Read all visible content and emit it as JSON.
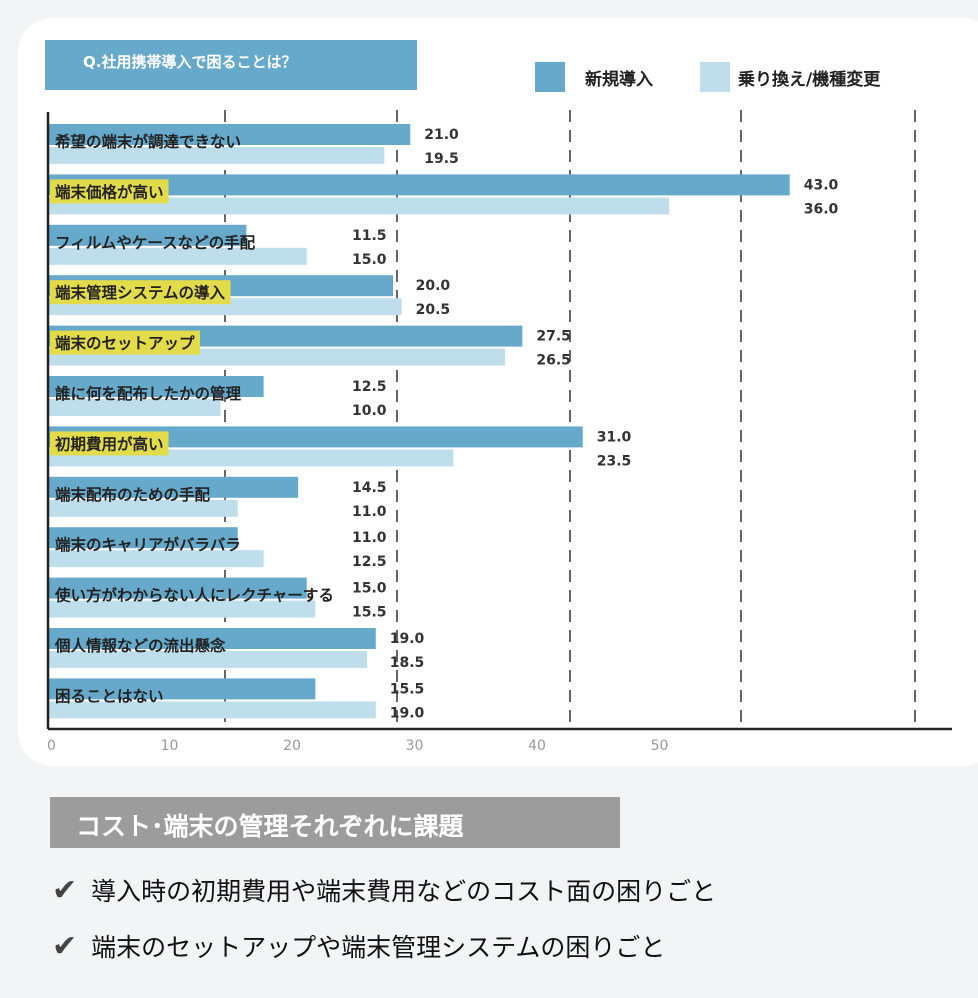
{
  "chart_data": {
    "type": "bar",
    "orientation": "horizontal",
    "title": "Q.社用携帯導入で困ることは？",
    "categories": [
      "希望の端末が調達できない",
      "端末価格が高い",
      "フィルムやケースなどの手配",
      "端末管理システムの導入",
      "端末のセットアップ",
      "誰に何を配布したかの管理",
      "初期費用が高い",
      "端末配布のための手配",
      "端末のキャリアがバラバラ",
      "使い方がわからない人にレクチャーする",
      "個人情報などの流出懸念",
      "困ることはない"
    ],
    "highlighted": [
      false,
      true,
      false,
      true,
      true,
      false,
      true,
      false,
      false,
      false,
      false,
      false
    ],
    "series": [
      {
        "name": "新規導入",
        "color": "#66a9cb",
        "values": [
          21.0,
          43.0,
          11.5,
          20.0,
          27.5,
          12.5,
          31.0,
          14.5,
          11.0,
          15.0,
          19.0,
          15.5
        ]
      },
      {
        "name": "乗り換え/機種変更",
        "color": "#bfdeec",
        "values": [
          19.5,
          36.0,
          15.0,
          20.5,
          26.5,
          10.0,
          23.5,
          11.0,
          12.5,
          15.5,
          18.5,
          19.0
        ]
      }
    ],
    "x_tick_labels": [
      "0",
      "10",
      "20",
      "30",
      "40",
      "50"
    ],
    "xlim": [
      0,
      50
    ],
    "grid": "vertical dashed",
    "legend": "top-right",
    "highlight_color": "#e3dc4a"
  },
  "summary": {
    "heading": "コスト･端末の管理それぞれに課題",
    "points": [
      "導入時の初期費用や端末費用などのコスト面の困りごと",
      "端末のセットアップや端末管理システムの困りごと"
    ],
    "check_icon": "✔"
  }
}
